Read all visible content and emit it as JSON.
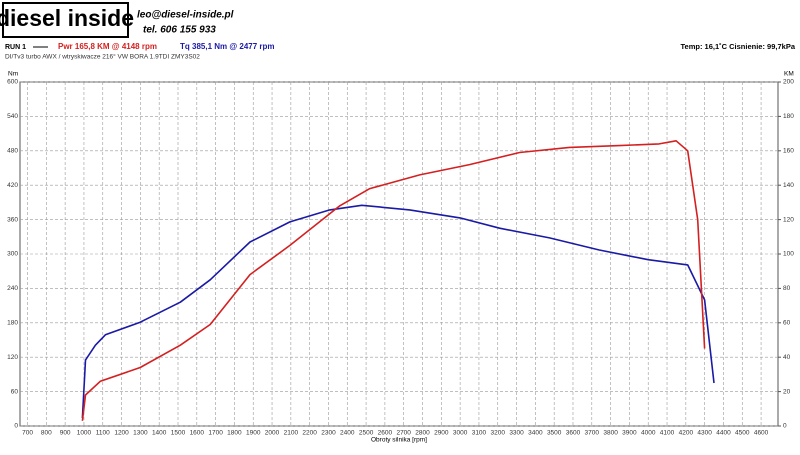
{
  "header": {
    "logo": "diesel inside",
    "email": "leo@diesel-inside.pl",
    "phone": "tel. 606 155 933",
    "run": "RUN 1",
    "pwr": "Pwr  165,8 KM @ 4148 rpm",
    "tq": "Tq  385,1 Nm @ 2477 rpm",
    "conditions": "Temp: 16,1˚C   Cisnienie: 99,7kPa",
    "subtitle": "DI/Tv3 turbo AWX / wtryskiwacze 216° VW BORA 1.9TDI ZMY3S02"
  },
  "chart_data": {
    "type": "line",
    "xlabel": "Obroty silnika [rpm]",
    "ylabel": "Nm",
    "y2label": "KM",
    "xlim": [
      660,
      4690
    ],
    "ylim": [
      0,
      600
    ],
    "y2lim": [
      0,
      200
    ],
    "xticks": [
      700,
      800,
      900,
      1000,
      1100,
      1200,
      1300,
      1400,
      1500,
      1600,
      1700,
      1800,
      1900,
      2000,
      2100,
      2200,
      2300,
      2400,
      2500,
      2600,
      2700,
      2800,
      2900,
      3000,
      3100,
      3200,
      3300,
      3400,
      3500,
      3600,
      3700,
      3800,
      3900,
      4000,
      4100,
      4200,
      4300,
      4400,
      4500,
      4600
    ],
    "yticks": [
      0,
      60,
      120,
      180,
      240,
      300,
      360,
      420,
      480,
      540,
      600
    ],
    "y2ticks": [
      0,
      20,
      40,
      60,
      80,
      100,
      120,
      140,
      160,
      180,
      200
    ],
    "grid": true,
    "series": [
      {
        "name": "Tq",
        "color": "#1a1aa6",
        "axis": "y",
        "x": [
          992,
          1008,
          1061,
          1114,
          1299,
          1512,
          1671,
          1883,
          2095,
          2307,
          2477,
          2732,
          3000,
          3210,
          3475,
          3740,
          4000,
          4210,
          4300,
          4350
        ],
        "values": [
          14,
          115,
          141,
          159,
          181,
          216,
          255,
          321,
          356,
          377,
          385,
          377,
          363,
          345,
          328,
          307,
          290,
          281,
          220,
          75
        ]
      },
      {
        "name": "Pwr",
        "color": "#d42020",
        "axis": "y2",
        "x": [
          992,
          1008,
          1087,
          1299,
          1512,
          1671,
          1883,
          2095,
          2360,
          2520,
          2785,
          3050,
          3316,
          3581,
          3846,
          4058,
          4148,
          4210,
          4263,
          4300
        ],
        "values": [
          3,
          18,
          26,
          34,
          47,
          59,
          88,
          105,
          128,
          138,
          146,
          152,
          159,
          162,
          163,
          164,
          165.8,
          160,
          120,
          45
        ]
      }
    ]
  }
}
